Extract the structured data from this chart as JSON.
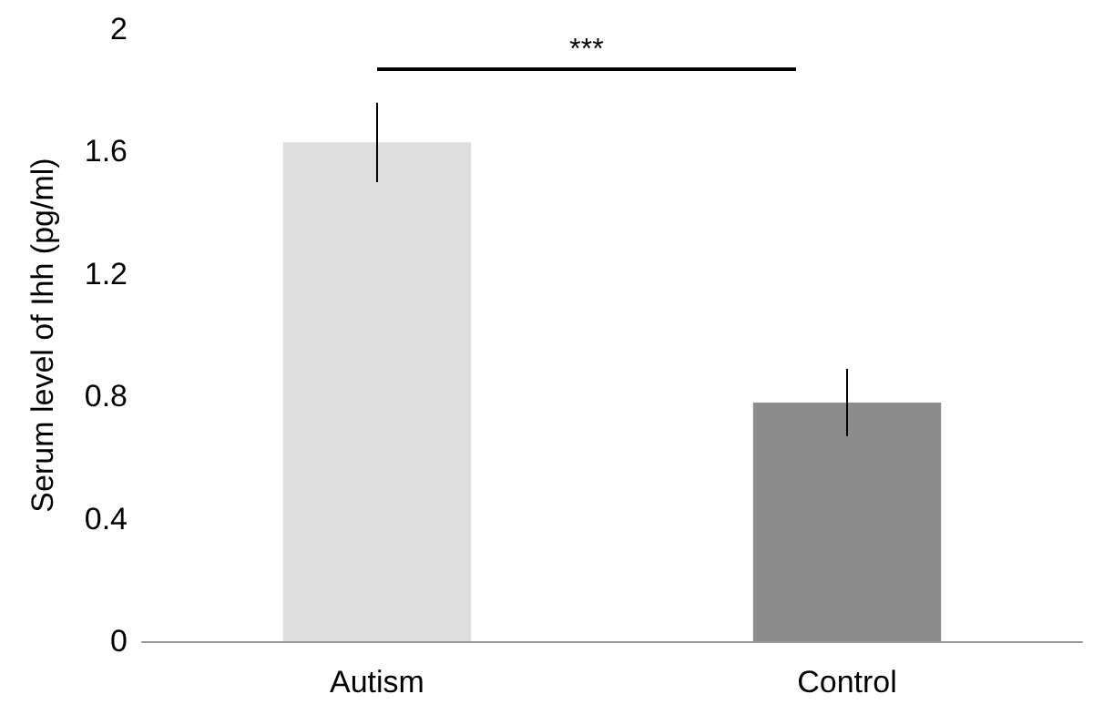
{
  "chart_data": {
    "type": "bar",
    "ylabel": "Serum level of Ihh (pg/ml)",
    "categories": [
      "Autism",
      "Control"
    ],
    "values": [
      1.63,
      0.78
    ],
    "colors": [
      "#dedede",
      "#8c8c8c"
    ],
    "errors": [
      0.13,
      0.11
    ],
    "ylim": [
      0,
      2
    ],
    "yticks": [
      0,
      0.4,
      0.8,
      1.2,
      1.6,
      2
    ],
    "grid": false,
    "annotations": [
      "***"
    ]
  }
}
